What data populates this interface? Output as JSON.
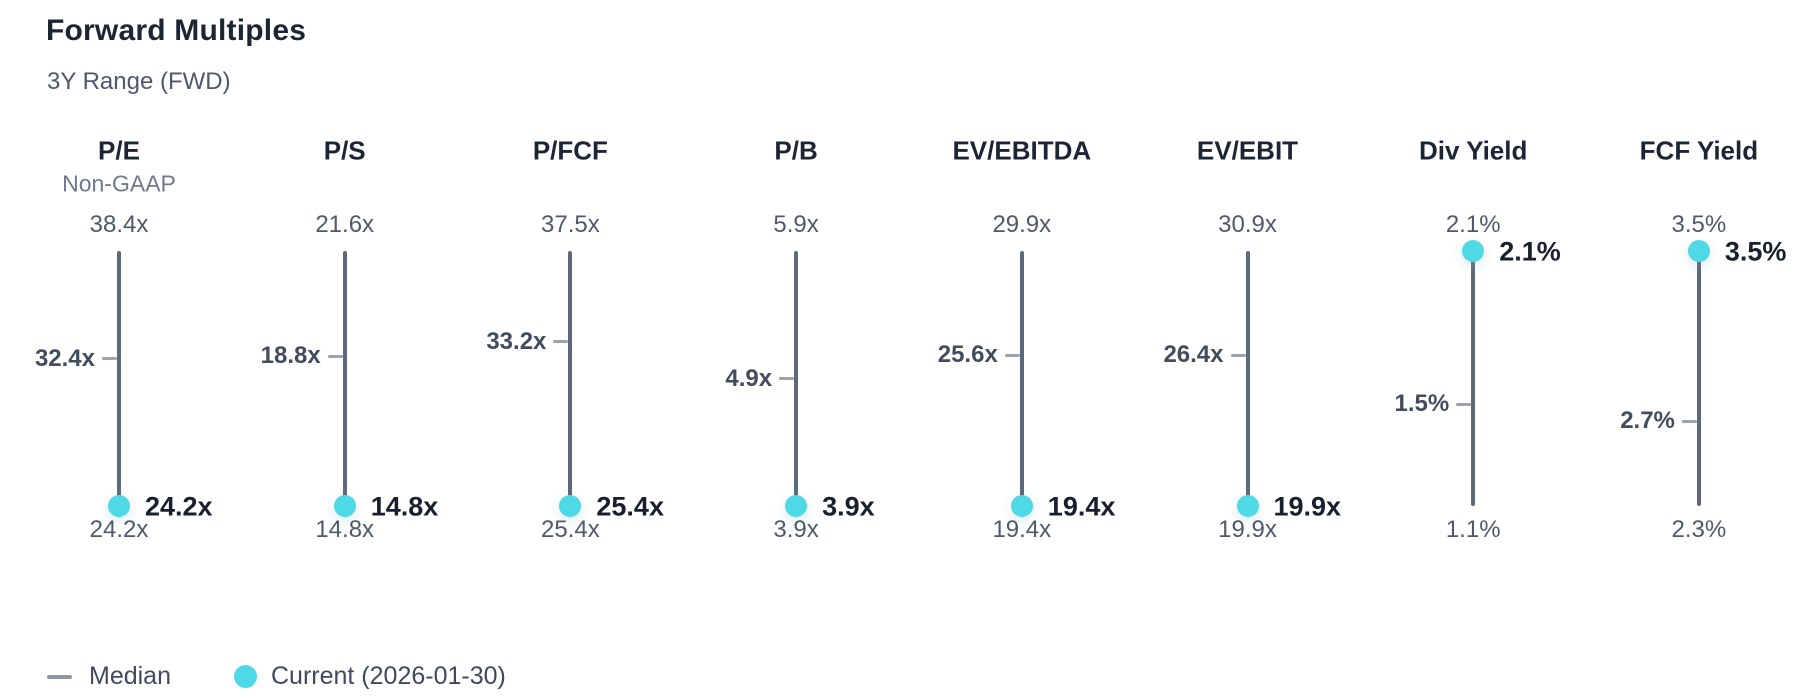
{
  "header": {
    "title": "Forward Multiples",
    "subtitle": "3Y Range (FWD)"
  },
  "legend": {
    "median_label": "Median",
    "current_label": "Current (2026-01-30)"
  },
  "colors": {
    "background": "#FFFFFF",
    "accent_cyan": "#4FD9E6",
    "range_line": "#5D6878",
    "median_tick": "#9AA3AE",
    "heading_text": "#1C2534",
    "subheader_text": "#6E7989",
    "value_muted_text": "#4E5A6B",
    "median_text": "#414D5E",
    "current_text": "#16202F",
    "legend_text": "#3F4B5C",
    "legend_dash": "#8E97A3"
  },
  "chart_data": {
    "type": "range-dumbbell",
    "title": "Forward Multiples",
    "subtitle": "3Y Range (FWD)",
    "legend": [
      "Median",
      "Current (2026-01-30)"
    ],
    "legend_position": "bottom-left",
    "grid": false,
    "columns": [
      {
        "label": "P/E",
        "sublabel": "Non-GAAP",
        "unit": "x",
        "max": 38.4,
        "median": 32.4,
        "current": 24.2,
        "min": 24.2
      },
      {
        "label": "P/S",
        "sublabel": "",
        "unit": "x",
        "max": 21.6,
        "median": 18.8,
        "current": 14.8,
        "min": 14.8
      },
      {
        "label": "P/FCF",
        "sublabel": "",
        "unit": "x",
        "max": 37.5,
        "median": 33.2,
        "current": 25.4,
        "min": 25.4
      },
      {
        "label": "P/B",
        "sublabel": "",
        "unit": "x",
        "max": 5.9,
        "median": 4.9,
        "current": 3.9,
        "min": 3.9
      },
      {
        "label": "EV/EBITDA",
        "sublabel": "",
        "unit": "x",
        "max": 29.9,
        "median": 25.6,
        "current": 19.4,
        "min": 19.4
      },
      {
        "label": "EV/EBIT",
        "sublabel": "",
        "unit": "x",
        "max": 30.9,
        "median": 26.4,
        "current": 19.9,
        "min": 19.9
      },
      {
        "label": "Div Yield",
        "sublabel": "",
        "unit": "%",
        "max": 2.1,
        "median": 1.5,
        "current": 2.1,
        "min": 1.1
      },
      {
        "label": "FCF Yield",
        "sublabel": "",
        "unit": "%",
        "max": 3.5,
        "median": 2.7,
        "current": 3.5,
        "min": 2.3
      }
    ]
  }
}
